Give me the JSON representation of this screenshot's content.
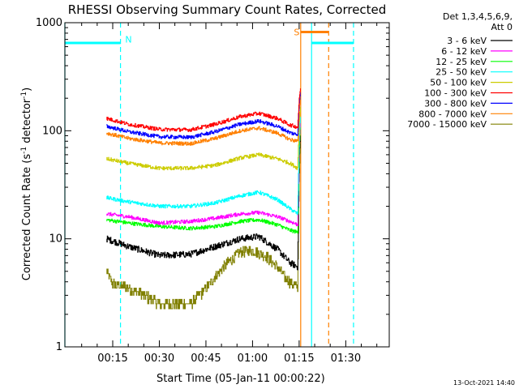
{
  "chart_data": {
    "type": "line",
    "title": "RHESSI Observing Summary Count Rates, Corrected",
    "xlabel": "Start Time (05-Jan-11 00:00:22)",
    "ylabel_prefix": "Corrected Count Rate (s",
    "ylabel_sup1": "-1",
    "ylabel_mid": " detector",
    "ylabel_sup2": "-1",
    "ylabel_suffix": ")",
    "y_scale": "log",
    "ylim": [
      1,
      1000
    ],
    "xlim_minutes": [
      -0.4,
      104
    ],
    "x_ticks": [
      {
        "m": 15,
        "label": "00:15"
      },
      {
        "m": 30,
        "label": "00:30"
      },
      {
        "m": 45,
        "label": "00:45"
      },
      {
        "m": 60,
        "label": "01:00"
      },
      {
        "m": 75,
        "label": "01:15"
      },
      {
        "m": 90,
        "label": "01:30"
      }
    ],
    "y_ticks": [
      {
        "v": 1,
        "label": "1"
      },
      {
        "v": 10,
        "label": "10"
      },
      {
        "v": 100,
        "label": "100"
      },
      {
        "v": 1000,
        "label": "1000"
      }
    ],
    "legend_title": "Det 1,3,4,5,6,9,",
    "legend_subtitle": "Att 0",
    "legend_position": "right",
    "series": [
      {
        "name": "3 - 6 keV",
        "color": "#000000",
        "x": [
          13,
          20,
          30,
          40,
          48,
          56,
          62,
          68,
          72,
          74.5,
          75,
          75.5
        ],
        "y": [
          10,
          8.5,
          7,
          7.2,
          8.5,
          10,
          10.5,
          8,
          6,
          5.5,
          60,
          100
        ]
      },
      {
        "name": "6 - 12 keV",
        "color": "#ff00ff",
        "x": [
          13,
          20,
          30,
          40,
          48,
          56,
          62,
          68,
          72,
          74.5,
          75,
          75.5
        ],
        "y": [
          17,
          16,
          14,
          14.5,
          15.5,
          17,
          17.5,
          16,
          14.5,
          13.5,
          80,
          140
        ]
      },
      {
        "name": "12 - 25 keV",
        "color": "#00ff00",
        "x": [
          13,
          20,
          30,
          40,
          48,
          56,
          62,
          68,
          72,
          74.5,
          75,
          75.5
        ],
        "y": [
          15,
          14,
          13,
          12.5,
          13,
          14.5,
          15,
          13.5,
          12,
          11.5,
          70,
          120
        ]
      },
      {
        "name": "25 - 50 keV",
        "color": "#00ffff",
        "x": [
          13,
          20,
          30,
          40,
          48,
          56,
          62,
          68,
          72,
          74.5,
          75,
          75.5
        ],
        "y": [
          24,
          22,
          20,
          20,
          21.5,
          25,
          27,
          23,
          19,
          17,
          90,
          150
        ]
      },
      {
        "name": "50 - 100 keV",
        "color": "#cccc00",
        "x": [
          13,
          20,
          30,
          40,
          48,
          56,
          62,
          68,
          72,
          74.5,
          75,
          75.5
        ],
        "y": [
          55,
          50,
          45,
          45,
          48,
          56,
          60,
          55,
          50,
          45,
          120,
          180
        ]
      },
      {
        "name": "100 - 300 keV",
        "color": "#ff0000",
        "x": [
          13,
          20,
          30,
          40,
          48,
          56,
          62,
          68,
          72,
          74.5,
          75,
          75.5
        ],
        "y": [
          130,
          115,
          103,
          102,
          115,
          135,
          145,
          130,
          113,
          108,
          200,
          260
        ]
      },
      {
        "name": "300 - 800 keV",
        "color": "#0000ff",
        "x": [
          13,
          20,
          30,
          40,
          48,
          56,
          62,
          68,
          72,
          74.5,
          75,
          75.5
        ],
        "y": [
          110,
          98,
          88,
          87,
          98,
          115,
          123,
          110,
          96,
          92,
          180,
          240
        ]
      },
      {
        "name": "800 - 7000 keV",
        "color": "#ff8000",
        "x": [
          13,
          20,
          30,
          40,
          48,
          56,
          62,
          68,
          72,
          74.5,
          75,
          75.5
        ],
        "y": [
          95,
          85,
          77,
          76,
          85,
          100,
          106,
          95,
          83,
          80,
          160,
          220
        ]
      },
      {
        "name": "7000 - 15000 keV",
        "color": "#808000",
        "x": [
          13,
          15,
          20,
          25,
          30,
          35,
          40,
          45,
          48,
          52,
          56,
          60,
          64,
          68,
          70,
          72,
          74.5,
          75,
          75.5
        ],
        "y": [
          5,
          3.8,
          3.5,
          3,
          2.5,
          2.5,
          2.5,
          3.5,
          4.5,
          6,
          7.5,
          7.8,
          7,
          5.5,
          4.5,
          4,
          3.5,
          40,
          90
        ]
      }
    ],
    "status_segments": [
      {
        "m0": -0.4,
        "m1": 17.5,
        "v": 650,
        "color": "#00ffff"
      },
      {
        "m0": 79,
        "m1": 92.5,
        "v": 650,
        "color": "#00ffff"
      },
      {
        "m0": 75.5,
        "m1": 84.5,
        "v": 820,
        "color": "#ff8000"
      }
    ],
    "vlines": [
      {
        "m": -0.4,
        "color": "#00ffff",
        "style": "solid"
      },
      {
        "m": 17.5,
        "color": "#00ffff",
        "style": "dash"
      },
      {
        "m": 79,
        "color": "#00ffff",
        "style": "solid"
      },
      {
        "m": 92.5,
        "color": "#00ffff",
        "style": "dash"
      },
      {
        "m": 75.5,
        "color": "#ff8000",
        "style": "solid"
      },
      {
        "m": 84.5,
        "color": "#ff8000",
        "style": "dash"
      }
    ],
    "markers": [
      {
        "text": "N",
        "m": 19,
        "v": 700,
        "color": "#00ffff"
      },
      {
        "text": "S",
        "m": 73.3,
        "v": 820,
        "color": "#ff8000"
      }
    ],
    "footnote": "13-Oct-2021 14:40"
  }
}
